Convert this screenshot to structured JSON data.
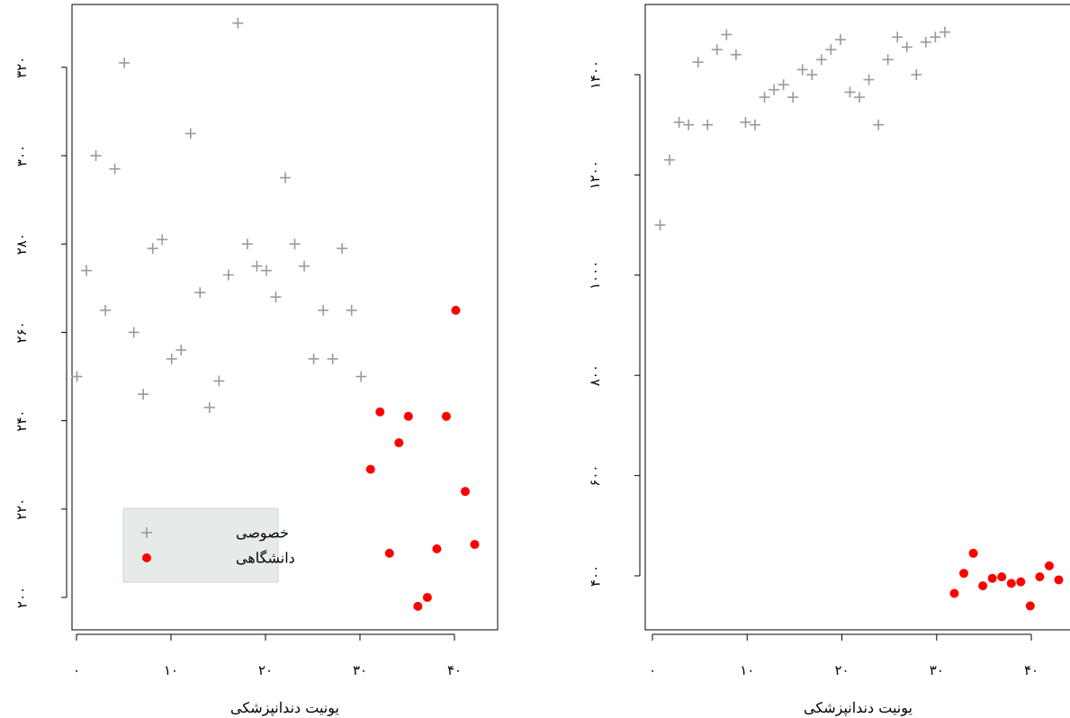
{
  "colors": {
    "private": "#9a9a9a",
    "university": "#ff0000",
    "legend_bg": "#e7ebe7",
    "legend_border": "#cfd6cf"
  },
  "chart_data": [
    {
      "type": "scatter",
      "title": "",
      "xlabel": "یونیت دندانپزشکی",
      "ylabel": "",
      "xlim": [
        0,
        43
      ],
      "ylim": [
        197,
        330
      ],
      "xticks": [
        0,
        10,
        20,
        30,
        40
      ],
      "xtick_labels": [
        "۰",
        "۱۰",
        "۲۰",
        "۳۰",
        "۴۰"
      ],
      "yticks": [
        200,
        220,
        240,
        260,
        280,
        300,
        320
      ],
      "ytick_labels": [
        "۲۰۰",
        "۲۲۰",
        "۲۴۰",
        "۲۶۰",
        "۲۸۰",
        "۳۰۰",
        "۳۲۰"
      ],
      "grid": false,
      "legend": "bottom-left",
      "series": [
        {
          "name": "خصوصی",
          "marker": "plus",
          "color": "#9a9a9a",
          "x": [
            1,
            2,
            3,
            4,
            5,
            6,
            7,
            8,
            9,
            10,
            11,
            12,
            13,
            14,
            15,
            16,
            17,
            18,
            19,
            20,
            21,
            22,
            23,
            24,
            25,
            26,
            27,
            28,
            29,
            30,
            31
          ],
          "y": [
            250,
            274,
            300,
            265,
            297,
            321,
            260,
            246,
            279,
            281,
            254,
            256,
            305,
            269,
            243,
            249,
            273,
            330,
            280,
            275,
            274,
            268,
            295,
            280,
            275,
            254,
            265,
            254,
            279,
            265,
            250
          ]
        },
        {
          "name": "دانشگاهی",
          "marker": "dot",
          "color": "#ff0000",
          "x": [
            32,
            33,
            34,
            35,
            36,
            37,
            38,
            39,
            40,
            41,
            42,
            43
          ],
          "y": [
            229,
            242,
            210,
            235,
            241,
            198,
            200,
            211,
            241,
            265,
            224,
            212
          ]
        }
      ]
    },
    {
      "type": "scatter",
      "title": "",
      "xlabel": "یونیت دندانپزشکی",
      "ylabel": "",
      "xlim": [
        0,
        43
      ],
      "ylim": [
        370,
        1500
      ],
      "xticks": [
        0,
        10,
        20,
        30,
        40
      ],
      "xtick_labels": [
        "۰",
        "۱۰",
        "۲۰",
        "۳۰",
        "۴۰"
      ],
      "yticks": [
        400,
        600,
        800,
        1000,
        1200,
        1400
      ],
      "ytick_labels": [
        "۴۰۰",
        "۶۰۰",
        "۸۰۰",
        "۱۰۰۰",
        "۱۲۰۰",
        "۱۴۰۰"
      ],
      "grid": false,
      "legend": "none",
      "series": [
        {
          "name": "خصوصی",
          "marker": "plus",
          "color": "#9a9a9a",
          "x": [
            1,
            2,
            3,
            4,
            5,
            6,
            7,
            8,
            9,
            10,
            11,
            12,
            13,
            14,
            15,
            16,
            17,
            18,
            19,
            20,
            21,
            22,
            23,
            24,
            25,
            26,
            27,
            28,
            29,
            30,
            31
          ],
          "y": [
            1100,
            1230,
            1305,
            1300,
            1425,
            1300,
            1450,
            1480,
            1440,
            1305,
            1300,
            1355,
            1370,
            1380,
            1355,
            1410,
            1400,
            1430,
            1450,
            1470,
            1365,
            1355,
            1390,
            1300,
            1430,
            1475,
            1455,
            1400,
            1465,
            1475,
            1485
          ]
        },
        {
          "name": "دانشگاهی",
          "marker": "dot",
          "color": "#ff0000",
          "x": [
            32,
            33,
            34,
            35,
            36,
            37,
            38,
            39,
            40,
            41,
            42,
            43
          ],
          "y": [
            365,
            405,
            445,
            380,
            395,
            398,
            385,
            388,
            340,
            398,
            420,
            392
          ]
        }
      ]
    }
  ]
}
